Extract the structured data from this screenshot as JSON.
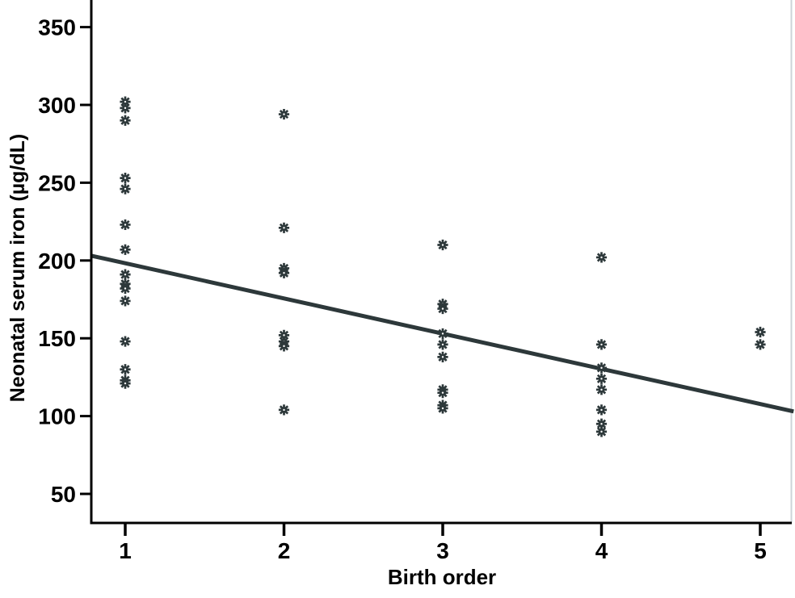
{
  "figure": {
    "background": "#ffffff"
  },
  "chart_data": {
    "type": "scatter",
    "title": "",
    "xlabel": "Birth order",
    "ylabel": "Neonatal serum iron (µg/dL)",
    "x_ticks": [
      1,
      2,
      3,
      4,
      5
    ],
    "y_ticks": [
      50,
      100,
      150,
      200,
      250,
      300,
      350
    ],
    "xlim": [
      0.79,
      5.21
    ],
    "ylim": [
      31,
      367
    ],
    "grid": false,
    "legend": "none",
    "marker_style": "eight-spoked-asterisk",
    "points": [
      {
        "x": 1,
        "y": 302
      },
      {
        "x": 1,
        "y": 298
      },
      {
        "x": 1,
        "y": 290
      },
      {
        "x": 1,
        "y": 253
      },
      {
        "x": 1,
        "y": 246
      },
      {
        "x": 1,
        "y": 223
      },
      {
        "x": 1,
        "y": 207
      },
      {
        "x": 1,
        "y": 191
      },
      {
        "x": 1,
        "y": 185
      },
      {
        "x": 1,
        "y": 182
      },
      {
        "x": 1,
        "y": 174
      },
      {
        "x": 1,
        "y": 148
      },
      {
        "x": 1,
        "y": 130
      },
      {
        "x": 1,
        "y": 123
      },
      {
        "x": 1,
        "y": 121
      },
      {
        "x": 2,
        "y": 294
      },
      {
        "x": 2,
        "y": 221
      },
      {
        "x": 2,
        "y": 195
      },
      {
        "x": 2,
        "y": 192
      },
      {
        "x": 2,
        "y": 152
      },
      {
        "x": 2,
        "y": 148
      },
      {
        "x": 2,
        "y": 145
      },
      {
        "x": 2,
        "y": 104
      },
      {
        "x": 3,
        "y": 210
      },
      {
        "x": 3,
        "y": 172
      },
      {
        "x": 3,
        "y": 169
      },
      {
        "x": 3,
        "y": 153
      },
      {
        "x": 3,
        "y": 146
      },
      {
        "x": 3,
        "y": 138
      },
      {
        "x": 3,
        "y": 117
      },
      {
        "x": 3,
        "y": 115
      },
      {
        "x": 3,
        "y": 107
      },
      {
        "x": 3,
        "y": 105
      },
      {
        "x": 4,
        "y": 202
      },
      {
        "x": 4,
        "y": 146
      },
      {
        "x": 4,
        "y": 131
      },
      {
        "x": 4,
        "y": 124
      },
      {
        "x": 4,
        "y": 117
      },
      {
        "x": 4,
        "y": 104
      },
      {
        "x": 4,
        "y": 95
      },
      {
        "x": 4,
        "y": 90
      },
      {
        "x": 5,
        "y": 154
      },
      {
        "x": 5,
        "y": 146
      }
    ],
    "fit_line": {
      "x1": 0.79,
      "y1": 203,
      "x2": 5.21,
      "y2": 103
    },
    "colors": {
      "marker": "#2d383a",
      "fit_line": "#2d383a",
      "axis": "#000000",
      "right_border": "#ccd4d8",
      "background": "#ffffff"
    }
  }
}
